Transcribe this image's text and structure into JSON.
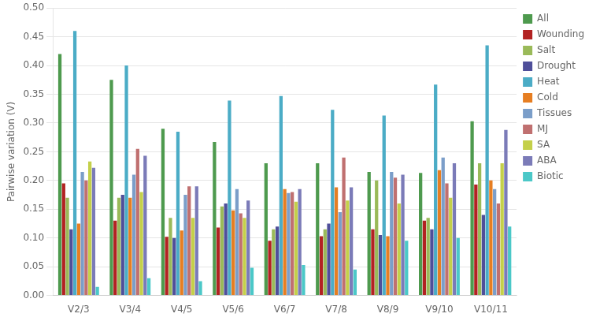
{
  "chart_data": {
    "type": "bar",
    "ylabel": "Pairwise variation (V)",
    "categories": [
      "V2/3",
      "V3/4",
      "V4/5",
      "V5/6",
      "V6/7",
      "V7/8",
      "V8/9",
      "V9/10",
      "V10/11"
    ],
    "series": [
      {
        "name": "All",
        "color": "#4E9A4E",
        "values": [
          0.42,
          0.375,
          0.29,
          0.267,
          0.23,
          0.23,
          0.215,
          0.213,
          0.303
        ]
      },
      {
        "name": "Wounding",
        "color": "#B22222",
        "values": [
          0.195,
          0.13,
          0.102,
          0.118,
          0.095,
          0.103,
          0.115,
          0.13,
          0.193
        ]
      },
      {
        "name": "Salt",
        "color": "#9ABA59",
        "values": [
          0.17,
          0.17,
          0.135,
          0.155,
          0.115,
          0.115,
          0.2,
          0.135,
          0.23
        ]
      },
      {
        "name": "Drought",
        "color": "#4F4F9A",
        "values": [
          0.115,
          0.175,
          0.1,
          0.16,
          0.12,
          0.125,
          0.105,
          0.115,
          0.14
        ]
      },
      {
        "name": "Heat",
        "color": "#4BACC6",
        "values": [
          0.46,
          0.4,
          0.285,
          0.339,
          0.347,
          0.323,
          0.313,
          0.367,
          0.435
        ]
      },
      {
        "name": "Cold",
        "color": "#E67E22",
        "values": [
          0.125,
          0.17,
          0.113,
          0.148,
          0.185,
          0.188,
          0.103,
          0.218,
          0.2
        ]
      },
      {
        "name": "Tissues",
        "color": "#7B9EC9",
        "values": [
          0.215,
          0.21,
          0.175,
          0.185,
          0.178,
          0.145,
          0.215,
          0.24,
          0.185
        ]
      },
      {
        "name": "MJ",
        "color": "#C07070",
        "values": [
          0.2,
          0.255,
          0.19,
          0.143,
          0.18,
          0.24,
          0.205,
          0.195,
          0.16
        ]
      },
      {
        "name": "SA",
        "color": "#C4D04A",
        "values": [
          0.233,
          0.18,
          0.135,
          0.135,
          0.163,
          0.165,
          0.16,
          0.17,
          0.23
        ]
      },
      {
        "name": "ABA",
        "color": "#7B7BB8",
        "values": [
          0.222,
          0.243,
          0.19,
          0.165,
          0.185,
          0.188,
          0.21,
          0.23,
          0.288
        ]
      },
      {
        "name": "Biotic",
        "color": "#4BC8C8",
        "values": [
          0.015,
          0.03,
          0.025,
          0.048,
          0.053,
          0.045,
          0.095,
          0.1,
          0.12
        ]
      }
    ],
    "ylim": [
      0,
      0.5
    ],
    "yticks": [
      {
        "value": 0,
        "label": "0.00"
      },
      0.05,
      {
        "value": 0.1,
        "label": "0.10"
      },
      0.15,
      {
        "value": 0.2,
        "label": "0.20"
      },
      0.25,
      {
        "value": 0.3,
        "label": "0.30"
      },
      0.35,
      {
        "value": 0.4,
        "label": "0.40"
      },
      0.45,
      {
        "value": 0.5,
        "label": "0.50"
      }
    ],
    "grid": true,
    "legend": "right"
  }
}
